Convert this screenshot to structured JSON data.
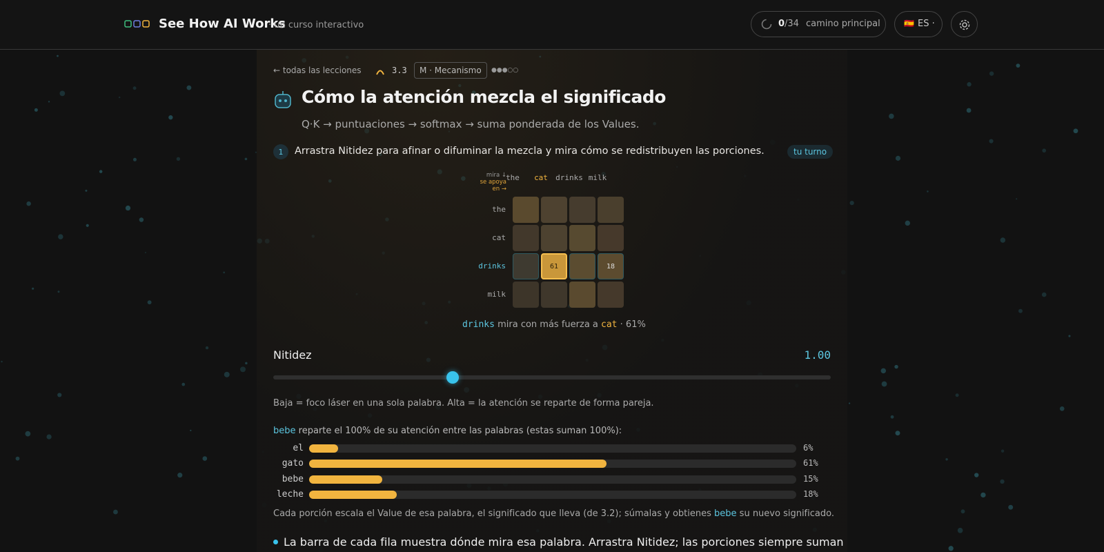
{
  "header": {
    "brand": "See How AI Works",
    "tagline": "· un curso interactivo",
    "progress_done": 0,
    "progress_total": "/34",
    "progress_label": "camino principal",
    "language": "ES ·"
  },
  "lesson": {
    "back": "← todas las lecciones",
    "number": "3.3",
    "tag": "M · Mecanismo",
    "level": "●●●○○",
    "title": "Cómo la atención mezcla el significado",
    "subtitle": "Q·K → puntuaciones → softmax → suma ponderada de los Values.",
    "step_number": "1",
    "step_text": "Arrastra Nitidez para afinar o difuminar la mezcla y mira cómo se redistribuyen las porciones.",
    "step_badge": "tu turno"
  },
  "heatmap": {
    "corner": [
      "mira ↓",
      "se apoya",
      "en →"
    ],
    "columns": [
      "the",
      "cat",
      "drinks",
      "milk"
    ],
    "rows": [
      {
        "label": "the",
        "cells": [
          null,
          null,
          null,
          null
        ]
      },
      {
        "label": "cat",
        "cells": [
          null,
          null,
          null,
          null
        ]
      },
      {
        "label": "drinks",
        "cells": [
          null,
          61,
          null,
          18
        ]
      },
      {
        "label": "milk",
        "cells": [
          null,
          null,
          null,
          null
        ]
      }
    ],
    "caption_word": "drinks",
    "caption_text": "mira con más fuerza a",
    "caption_target": "cat",
    "caption_value": "· 61%"
  },
  "slider": {
    "label": "Nitidez",
    "value": "1.00",
    "hint": "Baja = foco láser en una sola palabra. Alta = la atención se reparte de forma pareja."
  },
  "distribution": {
    "word": "bebe",
    "intro": "reparte el 100% de su atención entre las palabras (estas suman 100%):",
    "categories": [
      "el",
      "gato",
      "bebe",
      "leche"
    ],
    "values": [
      6,
      61,
      15,
      18
    ],
    "value_labels": [
      "6%",
      "61%",
      "15%",
      "18%"
    ],
    "xlim": [
      0,
      100
    ],
    "color": "#f1b43f",
    "note_start": "Cada porción escala el Value de esa palabra, el significado que lleva (de 3.2); súmalas y obtienes",
    "note_word": "bebe",
    "note_end": "su nuevo significado."
  },
  "bullet": "La barra de cada fila muestra dónde mira esa palabra. Arrastra Nitidez; las porciones siempre suman"
}
